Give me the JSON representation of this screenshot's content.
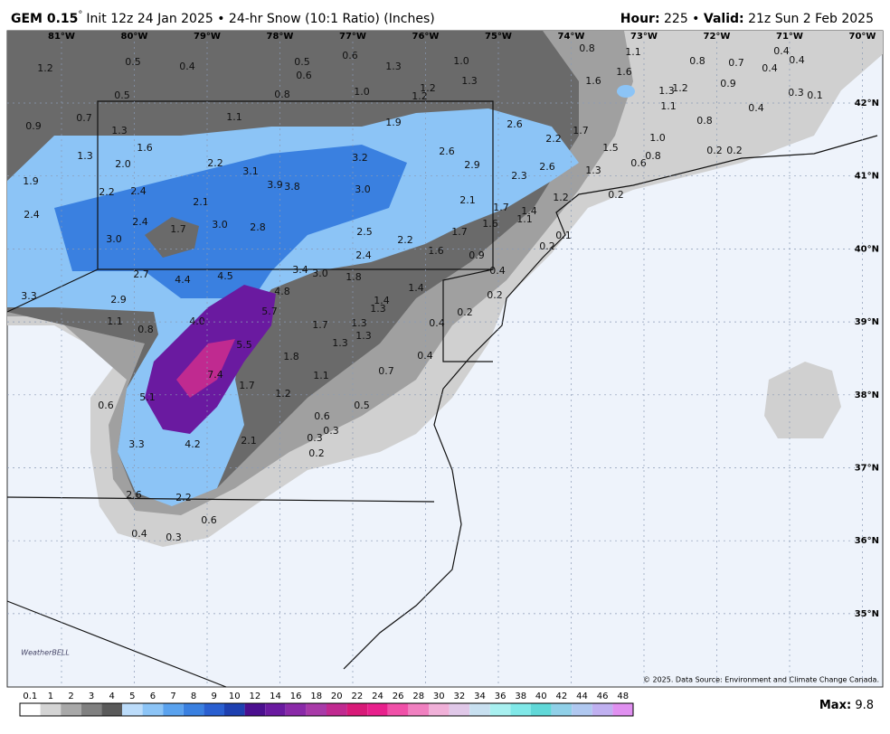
{
  "header": {
    "model": "GEM 0.15",
    "degree": "°",
    "run": "Init 12z 24 Jan 2025 • 24-hr Snow (10:1 Ratio) (Inches)",
    "hour_label": "Hour:",
    "hour": "225 •",
    "valid_label": "Valid:",
    "valid": "21z Sun 2 Feb 2025"
  },
  "longitudes": [
    "81°W",
    "80°W",
    "79°W",
    "78°W",
    "77°W",
    "76°W",
    "75°W",
    "74°W",
    "73°W",
    "72°W",
    "71°W",
    "70°W"
  ],
  "latitudes": [
    "42°N",
    "41°N",
    "40°N",
    "39°N",
    "38°N",
    "37°N",
    "36°N",
    "35°N"
  ],
  "point_labels": [
    "1.2",
    "0.5",
    "0.4",
    "0.5",
    "0.6",
    "0.6",
    "1.3",
    "1.0",
    "1.3",
    "1.0",
    "1.2",
    "1.2",
    "0.8",
    "0.5",
    "0.8",
    "1.1",
    "0.8",
    "0.7",
    "0.4",
    "0.4",
    "0.4",
    "1.6",
    "1.6",
    "1.3",
    "1.2",
    "0.9",
    "0.3",
    "0.1",
    "1.1",
    "0.4",
    "0.8",
    "0.7",
    "0.9",
    "1.3",
    "1.1",
    "1.9",
    "2.6",
    "1.7",
    "2.2",
    "1.0",
    "1.5",
    "0.2",
    "0.2",
    "0.8",
    "0.6",
    "1.6",
    "1.3",
    "2.0",
    "2.2",
    "3.2",
    "2.6",
    "2.9",
    "2.6",
    "1.3",
    "2.3",
    "3.1",
    "3.9",
    "3.8",
    "3.0",
    "0.2",
    "1.9",
    "2.2",
    "2.4",
    "2.1",
    "2.1",
    "1.2",
    "1.7",
    "1.4",
    "1.6",
    "1.1",
    "2.4",
    "2.4",
    "1.7",
    "3.0",
    "2.8",
    "2.5",
    "2.2",
    "1.7",
    "0.1",
    "3.0",
    "1.6",
    "0.2",
    "0.9",
    "2.4",
    "0.4",
    "2.7",
    "4.4",
    "4.5",
    "3.4",
    "3.0",
    "1.8",
    "1.4",
    "4.8",
    "3.3",
    "2.9",
    "1.4",
    "1.3",
    "0.2",
    "5.7",
    "0.2",
    "1.1",
    "4.0",
    "1.7",
    "1.3",
    "0.4",
    "0.8",
    "1.3",
    "1.3",
    "5.5",
    "1.8",
    "0.4",
    "7.4",
    "1.1",
    "0.7",
    "1.7",
    "1.2",
    "5.1",
    "0.6",
    "0.5",
    "0.6",
    "0.3",
    "0.3",
    "2.1",
    "4.2",
    "3.3",
    "0.2",
    "2.6",
    "2.2",
    "0.6",
    "0.4",
    "0.3"
  ],
  "colorbar": {
    "labels": [
      0.1,
      1,
      2,
      3,
      4,
      5,
      6,
      7,
      8,
      9,
      10,
      12,
      14,
      16,
      18,
      20,
      22,
      24,
      26,
      28,
      30,
      32,
      34,
      36,
      38,
      40,
      42,
      44,
      46,
      48
    ],
    "colors": [
      "#ffffff",
      "#d4d4d4",
      "#a8a8a8",
      "#808080",
      "#5a5a5a",
      "#bcdcfa",
      "#8cc4f6",
      "#5aa2ee",
      "#3a80e0",
      "#2a5fd0",
      "#1e40b0",
      "#4b0f8f",
      "#6a1aa0",
      "#8a2aa8",
      "#a83aa8",
      "#c02a90",
      "#d81a78",
      "#e8208c",
      "#f050a8",
      "#f080c0",
      "#f0b0d8",
      "#e0c8e8",
      "#c8e0f0",
      "#a8f0f0",
      "#80e8e8",
      "#60d8d8",
      "#90d0e8",
      "#b0c8f0",
      "#c0b0f0",
      "#e090f0"
    ]
  },
  "footer": {
    "copyright": "© 2025. Data Source: Environment and Climate Change Canada.",
    "logo": "WeatherBELL",
    "max_label": "Max:",
    "max": "9.8"
  }
}
